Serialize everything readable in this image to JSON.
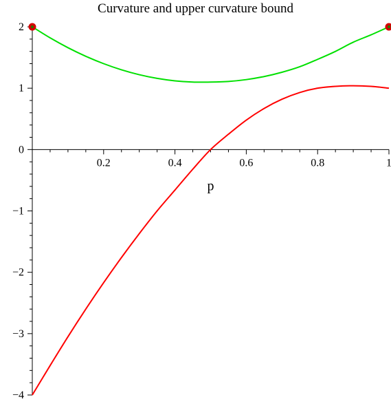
{
  "chart_data": {
    "type": "line",
    "title": "Curvature and upper curvature bound",
    "xlabel": "p",
    "ylabel": "",
    "xlim": [
      0,
      1
    ],
    "ylim": [
      -4,
      2
    ],
    "x_ticks": [
      0.2,
      0.4,
      0.6,
      0.8,
      1
    ],
    "x_tick_labels": [
      "0.2",
      "0.4",
      "0.6",
      "0.8",
      "1"
    ],
    "y_ticks": [
      2,
      1,
      0,
      -1,
      -2,
      -3,
      -4
    ],
    "y_tick_labels": [
      "2",
      "1",
      "0",
      "−1",
      "−2",
      "−3",
      "−4"
    ],
    "grid": false,
    "series": [
      {
        "color": "#00e000",
        "x": [
          0,
          0.05,
          0.1,
          0.15,
          0.2,
          0.25,
          0.3,
          0.35,
          0.4,
          0.45,
          0.5,
          0.55,
          0.6,
          0.65,
          0.7,
          0.75,
          0.8,
          0.85,
          0.9,
          0.95,
          1
        ],
        "y": [
          2.0,
          1.82,
          1.66,
          1.52,
          1.4,
          1.3,
          1.22,
          1.16,
          1.12,
          1.1,
          1.1,
          1.11,
          1.14,
          1.19,
          1.26,
          1.35,
          1.47,
          1.6,
          1.75,
          1.87,
          2.0
        ]
      },
      {
        "color": "#ff0000",
        "x": [
          0,
          0.05,
          0.1,
          0.15,
          0.2,
          0.25,
          0.3,
          0.35,
          0.4,
          0.45,
          0.5,
          0.55,
          0.6,
          0.65,
          0.7,
          0.75,
          0.8,
          0.85,
          0.9,
          0.95,
          1
        ],
        "y": [
          -4.0,
          -3.52,
          -3.05,
          -2.6,
          -2.17,
          -1.76,
          -1.37,
          -1.0,
          -0.66,
          -0.32,
          0.0,
          0.25,
          0.48,
          0.67,
          0.82,
          0.93,
          1.0,
          1.03,
          1.04,
          1.03,
          1.0
        ]
      }
    ],
    "endpoint_markers": {
      "color": "#d40000",
      "points": [
        {
          "x": 0,
          "y": 2
        },
        {
          "x": 1,
          "y": 2
        }
      ]
    }
  }
}
